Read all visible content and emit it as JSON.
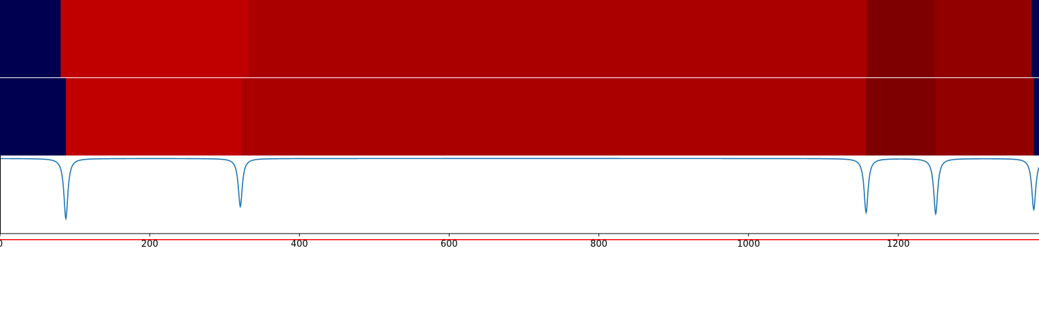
{
  "chart_data": [
    {
      "type": "heatmap",
      "panel": "segments-top",
      "xlim": [
        0,
        1388
      ],
      "segments": [
        {
          "x0": 0,
          "x1": 81,
          "color": "#000050"
        },
        {
          "x0": 81,
          "x1": 332,
          "color": "#c00000"
        },
        {
          "x0": 332,
          "x1": 1158,
          "color": "#ab0000"
        },
        {
          "x0": 1158,
          "x1": 1248,
          "color": "#7e0000"
        },
        {
          "x0": 1248,
          "x1": 1378,
          "color": "#920000"
        },
        {
          "x0": 1378,
          "x1": 1388,
          "color": "#000050"
        }
      ]
    },
    {
      "type": "heatmap",
      "panel": "segments-bottom",
      "xlim": [
        0,
        1388
      ],
      "segments": [
        {
          "x0": 0,
          "x1": 88,
          "color": "#000050"
        },
        {
          "x0": 88,
          "x1": 322,
          "color": "#c00000"
        },
        {
          "x0": 322,
          "x1": 1157,
          "color": "#ab0000"
        },
        {
          "x0": 1157,
          "x1": 1250,
          "color": "#7e0000"
        },
        {
          "x0": 1250,
          "x1": 1381,
          "color": "#920000"
        },
        {
          "x0": 1381,
          "x1": 1388,
          "color": "#000050"
        }
      ]
    },
    {
      "type": "line",
      "panel": "signal",
      "xlim": [
        0,
        1388
      ],
      "ylim": [
        -1.25,
        0.05
      ],
      "xticks": [
        "0",
        "200",
        "400",
        "600",
        "800",
        "1000",
        "1200"
      ],
      "xtick_values": [
        0,
        200,
        400,
        600,
        800,
        1000,
        1200
      ],
      "series": [
        {
          "color": "#1f77b4",
          "baseline": 0,
          "dips": [
            {
              "x": 88,
              "depth": -1.0
            },
            {
              "x": 321,
              "depth": -0.8
            },
            {
              "x": 1157,
              "depth": -0.9
            },
            {
              "x": 1250,
              "depth": -0.92
            },
            {
              "x": 1381,
              "depth": -0.85
            }
          ]
        }
      ],
      "threshold": {
        "y": -1.35,
        "color": "#ff0000"
      }
    }
  ]
}
